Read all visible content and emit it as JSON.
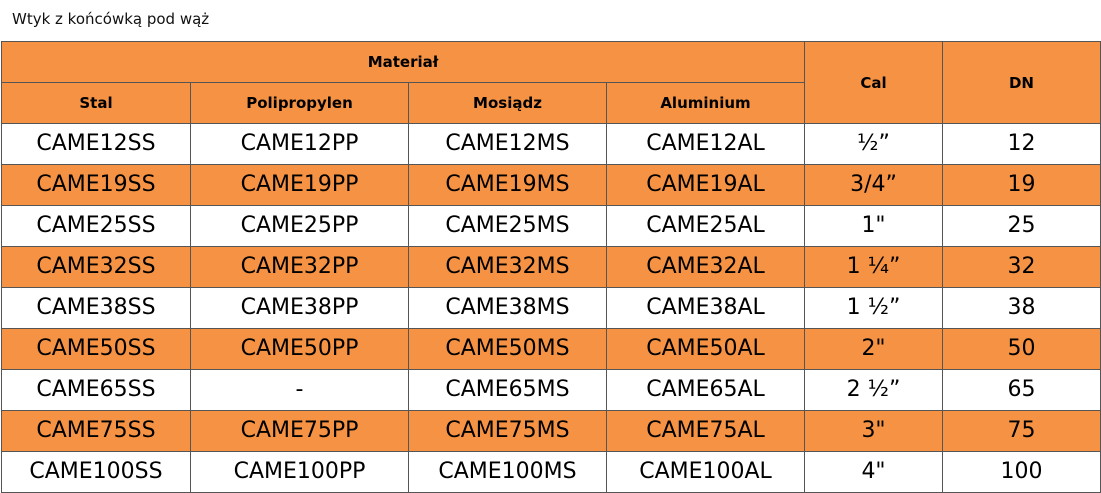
{
  "title": "Wtyk z końcówką pod wąż",
  "table": {
    "group_header": "Materiał",
    "columns": [
      "Stal",
      "Polipropylen",
      "Mosiądz",
      "Aluminium",
      "Cal",
      "DN"
    ],
    "rows": [
      [
        "CAME12SS",
        "CAME12PP",
        "CAME12MS",
        "CAME12AL",
        "½”",
        12
      ],
      [
        "CAME19SS",
        "CAME19PP",
        "CAME19MS",
        "CAME19AL",
        "3/4”",
        19
      ],
      [
        "CAME25SS",
        "CAME25PP",
        "CAME25MS",
        "CAME25AL",
        "1\"",
        25
      ],
      [
        "CAME32SS",
        "CAME32PP",
        "CAME32MS",
        "CAME32AL",
        "1 ¼”",
        32
      ],
      [
        "CAME38SS",
        "CAME38PP",
        "CAME38MS",
        "CAME38AL",
        "1 ½”",
        38
      ],
      [
        "CAME50SS",
        "CAME50PP",
        "CAME50MS",
        "CAME50AL",
        "2\"",
        50
      ],
      [
        "CAME65SS",
        "-",
        "CAME65MS",
        "CAME65AL",
        "2 ½”",
        65
      ],
      [
        "CAME75SS",
        "CAME75PP",
        "CAME75MS",
        "CAME75AL",
        "3\"",
        75
      ],
      [
        "CAME100SS",
        "CAME100PP",
        "CAME100MS",
        "CAME100AL",
        "4\"",
        100
      ]
    ]
  }
}
